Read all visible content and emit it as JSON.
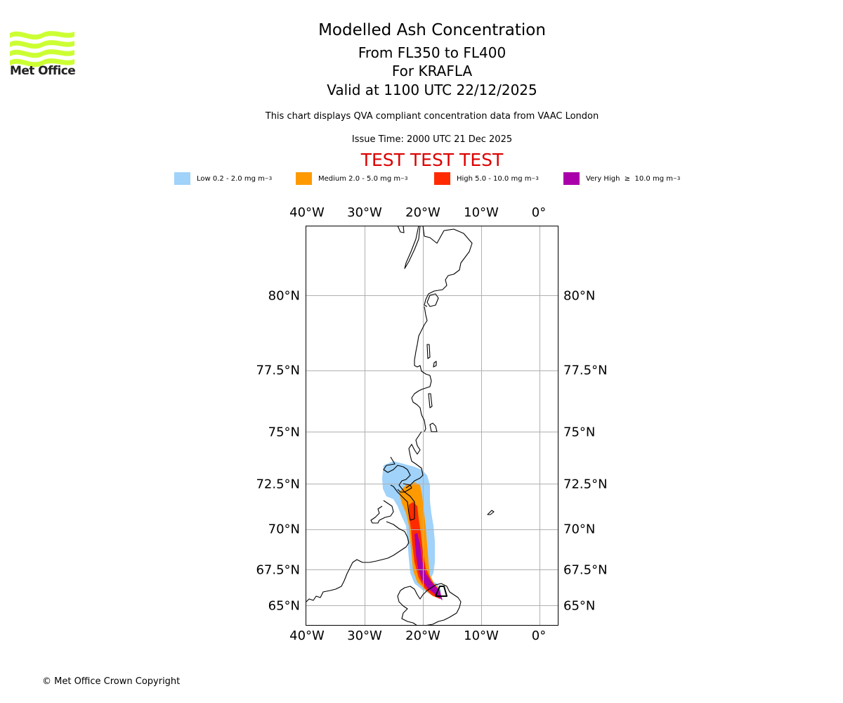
{
  "logo": {
    "name": "met-office-logo",
    "text": "Met Office",
    "color": "#ccff33"
  },
  "header": {
    "title": "Modelled Ash Concentration",
    "levels": "From FL350 to FL400",
    "volcano": "For KRAFLA",
    "valid": "Valid at 1100 UTC 22/12/2025",
    "subtitle": "This chart displays QVA compliant concentration data from VAAC London",
    "issue_time": "Issue Time: 2000 UTC 21 Dec 2025",
    "test_banner": "TEST TEST TEST",
    "test_color": "#dd0000"
  },
  "legend": [
    {
      "label": "Low 0.2 - 2.0 mg m",
      "exp": "−3",
      "color": "#a0d2fa"
    },
    {
      "label": "Medium 2.0 - 5.0 mg m",
      "exp": "−3",
      "color": "#ff9900"
    },
    {
      "label": "High 5.0 - 10.0 mg m",
      "exp": "−3",
      "color": "#ff2a00"
    },
    {
      "label": "Very High  ≥  10.0 mg m",
      "exp": "−3",
      "color": "#aa00aa"
    }
  ],
  "map": {
    "lon_ticks": [
      "40°W",
      "30°W",
      "20°W",
      "10°W",
      "0°"
    ],
    "lat_ticks": [
      "80°N",
      "77.5°N",
      "75°N",
      "72.5°N",
      "70°N",
      "67.5°N",
      "65°N"
    ],
    "lon_values": [
      -40,
      -30,
      -20,
      -10,
      0
    ],
    "lat_values": [
      80,
      77.5,
      75,
      72.5,
      70,
      67.5,
      65
    ],
    "grid_color": "#b0b0b0",
    "coast_color": "#000000"
  },
  "footer": {
    "copyright": "© Met Office Crown Copyright"
  }
}
